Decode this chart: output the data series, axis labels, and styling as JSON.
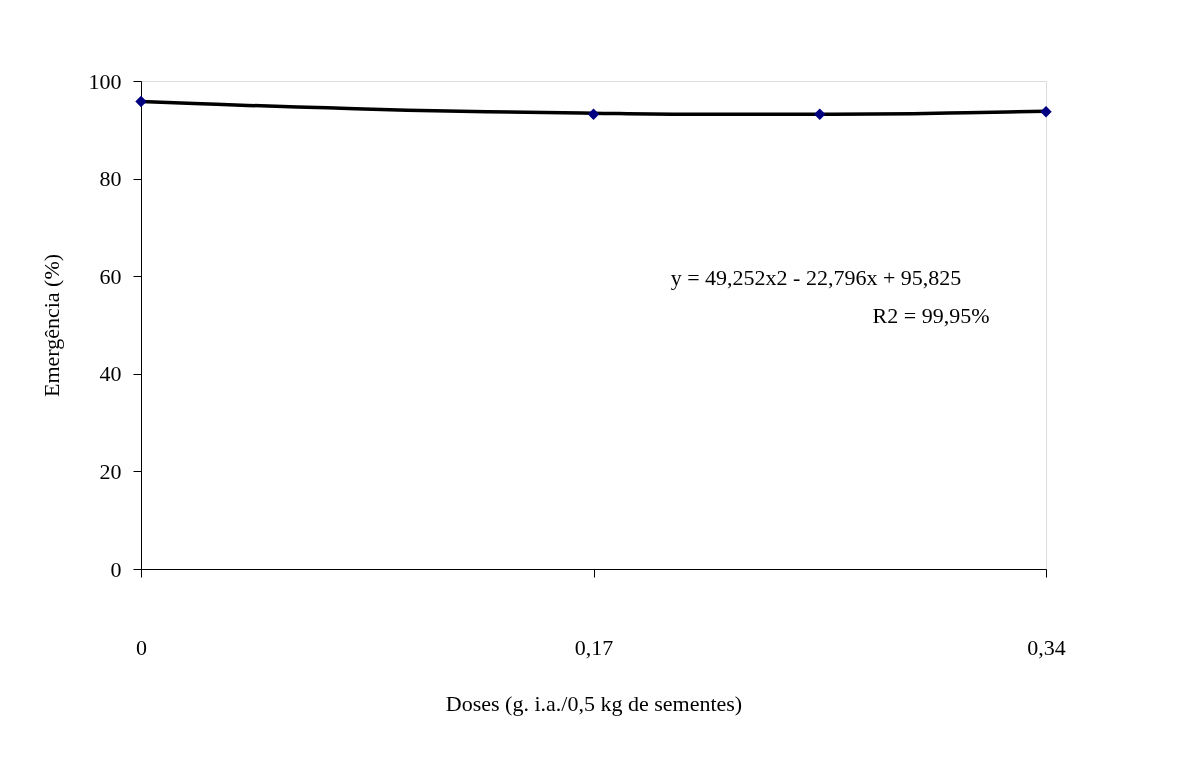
{
  "chart_data": {
    "type": "scatter",
    "xlabel": "Doses (g. i.a./0,5 kg de sementes)",
    "ylabel": "Emergência (%)",
    "xlim": [
      0,
      0.34
    ],
    "xticks": [
      0,
      {
        "value": 0.17,
        "label": "0,17"
      },
      {
        "value": 0.34,
        "label": "0,34"
      }
    ],
    "ylim": [
      0,
      100
    ],
    "yticks": [
      0,
      20,
      40,
      60,
      80,
      100
    ],
    "grid": false,
    "marker": "diamond",
    "series": [
      {
        "type": "line",
        "color": "#000000",
        "marker": "none",
        "x": [
          0,
          0.02,
          0.04,
          0.07,
          0.1,
          0.13,
          0.17,
          0.2,
          0.23,
          0.26,
          0.29,
          0.31,
          0.34
        ],
        "values": [
          95.8,
          95.4,
          95.0,
          94.5,
          94.0,
          93.7,
          93.4,
          93.2,
          93.2,
          93.2,
          93.3,
          93.5,
          93.8
        ]
      },
      {
        "color": "#000080",
        "x": [
          0,
          0.17,
          0.255,
          0.34
        ],
        "values": [
          95.8,
          93.2,
          93.2,
          93.7
        ]
      }
    ],
    "annotations": [
      "y = 49,252x2 - 22,796x + 95,825",
      "R2 = 99,95%"
    ]
  }
}
